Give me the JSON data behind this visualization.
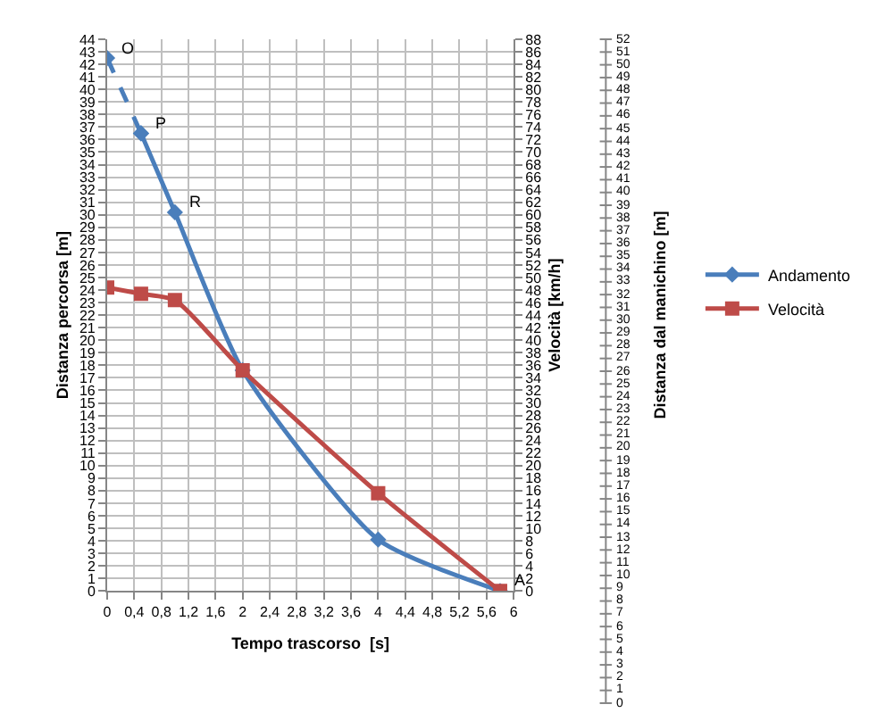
{
  "chart_data": {
    "type": "line",
    "xlabel": "Tempo trascorso  [s]",
    "ylabel": "Distanza percorsa [m]",
    "y2label": "Velocità [km/h]",
    "y3label": "Distanza dal manichino [m]",
    "series": [
      {
        "name": "Andamento",
        "color": "#4a7ebb",
        "x": [
          0.5,
          1,
          2,
          4,
          5.8
        ],
        "values": [
          36.5,
          30.2,
          17.6,
          4.1,
          0
        ],
        "marker": "diamond",
        "line_style": "solid"
      },
      {
        "color": "#4a7ebb",
        "x": [
          0,
          0.5
        ],
        "values": [
          42.5,
          36.5
        ],
        "marker": "diamond",
        "line_style": "dashed"
      },
      {
        "name": "Velocità",
        "color": "#be4b48",
        "axis": "y2",
        "x": [
          0,
          0.5,
          1,
          2,
          4,
          5.8
        ],
        "values": [
          48.4,
          47.4,
          46.4,
          35.2,
          15.6,
          0
        ],
        "marker": "square",
        "line_style": "solid"
      }
    ],
    "annotations": [
      {
        "text": "O",
        "x": 0,
        "y": 42.5
      },
      {
        "text": "P",
        "x": 0.5,
        "y": 36.5
      },
      {
        "text": "R",
        "x": 1,
        "y": 30.2
      },
      {
        "text": "A",
        "x": 5.8,
        "y": 0
      }
    ],
    "xlim": [
      0,
      6
    ],
    "xticks": [
      0,
      {
        "value": 0.4,
        "label": "0,4"
      },
      {
        "value": 0.8,
        "label": "0,8"
      },
      {
        "value": 1.2,
        "label": "1,2"
      },
      {
        "value": 1.6,
        "label": "1,6"
      },
      2,
      {
        "value": 2.4,
        "label": "2,4"
      },
      {
        "value": 2.8,
        "label": "2,8"
      },
      {
        "value": 3.2,
        "label": "3,2"
      },
      {
        "value": 3.6,
        "label": "3,6"
      },
      4,
      {
        "value": 4.4,
        "label": "4,4"
      },
      {
        "value": 4.8,
        "label": "4,8"
      },
      {
        "value": 5.2,
        "label": "5,2"
      },
      {
        "value": 5.6,
        "label": "5,6"
      },
      6
    ],
    "ylim": [
      0,
      44
    ],
    "yticks": [
      0,
      1,
      2,
      3,
      4,
      5,
      6,
      7,
      8,
      9,
      10,
      11,
      12,
      13,
      14,
      15,
      16,
      17,
      18,
      19,
      20,
      21,
      22,
      23,
      24,
      25,
      26,
      27,
      28,
      29,
      30,
      31,
      32,
      33,
      34,
      35,
      36,
      37,
      38,
      39,
      40,
      41,
      42,
      43,
      44
    ],
    "y2lim": [
      0,
      88
    ],
    "y2ticks": [
      0,
      2,
      4,
      6,
      8,
      10,
      12,
      14,
      16,
      18,
      20,
      22,
      24,
      26,
      28,
      30,
      32,
      34,
      36,
      38,
      40,
      42,
      44,
      46,
      48,
      50,
      52,
      54,
      56,
      58,
      60,
      62,
      64,
      66,
      68,
      70,
      72,
      74,
      76,
      78,
      80,
      82,
      84,
      86,
      88
    ],
    "y3lim": [
      0,
      52
    ],
    "y3ticks": [
      0,
      1,
      2,
      3,
      4,
      5,
      6,
      7,
      8,
      9,
      10,
      11,
      12,
      13,
      14,
      15,
      16,
      17,
      18,
      19,
      20,
      21,
      22,
      23,
      24,
      25,
      26,
      27,
      28,
      29,
      30,
      31,
      32,
      33,
      34,
      35,
      36,
      37,
      38,
      39,
      40,
      41,
      42,
      43,
      44,
      45,
      46,
      47,
      48,
      49,
      50,
      51,
      52
    ],
    "grid": true,
    "legend": "right"
  }
}
